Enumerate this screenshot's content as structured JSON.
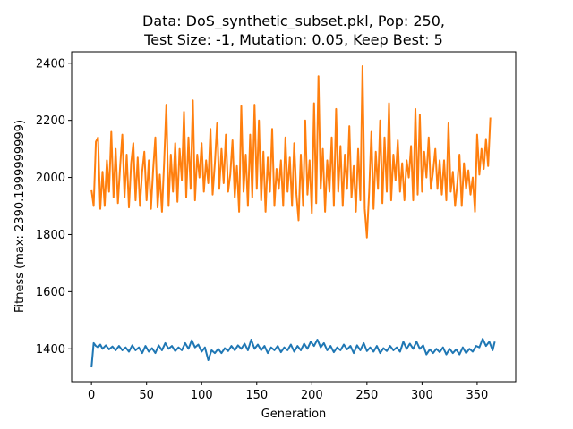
{
  "chart_data": {
    "type": "line",
    "title_line1": "Data: DoS_synthetic_subset.pkl, Pop: 250,",
    "title_line2": "Test Size: -1, Mutation: 0.05, Keep Best: 5",
    "xlabel": "Generation",
    "ylabel": "Fitness (max: 2390.1999999999)",
    "xlim": [
      -18,
      385
    ],
    "ylim": [
      1285,
      2440
    ],
    "xticks": [
      0,
      50,
      100,
      150,
      200,
      250,
      300,
      350
    ],
    "yticks": [
      1400,
      1600,
      1800,
      2000,
      2200,
      2400
    ],
    "grid": false,
    "legend": "none",
    "series": [
      {
        "color": "#1f77b4",
        "points": [
          [
            0,
            1335
          ],
          [
            2,
            1420
          ],
          [
            4,
            1410
          ],
          [
            6,
            1405
          ],
          [
            8,
            1415
          ],
          [
            10,
            1400
          ],
          [
            13,
            1412
          ],
          [
            16,
            1398
          ],
          [
            19,
            1408
          ],
          [
            22,
            1395
          ],
          [
            25,
            1410
          ],
          [
            28,
            1395
          ],
          [
            31,
            1405
          ],
          [
            34,
            1390
          ],
          [
            37,
            1412
          ],
          [
            40,
            1395
          ],
          [
            43,
            1405
          ],
          [
            46,
            1385
          ],
          [
            49,
            1410
          ],
          [
            52,
            1390
          ],
          [
            55,
            1402
          ],
          [
            58,
            1385
          ],
          [
            61,
            1412
          ],
          [
            64,
            1395
          ],
          [
            67,
            1420
          ],
          [
            70,
            1400
          ],
          [
            73,
            1410
          ],
          [
            76,
            1392
          ],
          [
            79,
            1405
          ],
          [
            82,
            1395
          ],
          [
            85,
            1420
          ],
          [
            88,
            1400
          ],
          [
            91,
            1430
          ],
          [
            94,
            1405
          ],
          [
            97,
            1415
          ],
          [
            100,
            1390
          ],
          [
            103,
            1405
          ],
          [
            106,
            1360
          ],
          [
            109,
            1395
          ],
          [
            112,
            1385
          ],
          [
            115,
            1400
          ],
          [
            118,
            1385
          ],
          [
            121,
            1402
          ],
          [
            124,
            1392
          ],
          [
            127,
            1410
          ],
          [
            130,
            1395
          ],
          [
            133,
            1412
          ],
          [
            136,
            1400
          ],
          [
            139,
            1418
          ],
          [
            142,
            1395
          ],
          [
            145,
            1432
          ],
          [
            148,
            1400
          ],
          [
            151,
            1415
          ],
          [
            154,
            1395
          ],
          [
            157,
            1410
          ],
          [
            160,
            1385
          ],
          [
            163,
            1405
          ],
          [
            166,
            1395
          ],
          [
            169,
            1410
          ],
          [
            172,
            1388
          ],
          [
            175,
            1405
          ],
          [
            178,
            1395
          ],
          [
            181,
            1415
          ],
          [
            184,
            1390
          ],
          [
            187,
            1410
          ],
          [
            190,
            1395
          ],
          [
            193,
            1418
          ],
          [
            196,
            1400
          ],
          [
            199,
            1425
          ],
          [
            202,
            1410
          ],
          [
            205,
            1432
          ],
          [
            208,
            1405
          ],
          [
            211,
            1420
          ],
          [
            214,
            1395
          ],
          [
            217,
            1410
          ],
          [
            220,
            1388
          ],
          [
            223,
            1405
          ],
          [
            226,
            1395
          ],
          [
            229,
            1415
          ],
          [
            232,
            1398
          ],
          [
            235,
            1410
          ],
          [
            238,
            1385
          ],
          [
            241,
            1412
          ],
          [
            244,
            1395
          ],
          [
            247,
            1420
          ],
          [
            250,
            1392
          ],
          [
            253,
            1405
          ],
          [
            256,
            1390
          ],
          [
            259,
            1410
          ],
          [
            262,
            1385
          ],
          [
            265,
            1402
          ],
          [
            268,
            1392
          ],
          [
            271,
            1410
          ],
          [
            274,
            1395
          ],
          [
            277,
            1405
          ],
          [
            280,
            1390
          ],
          [
            283,
            1425
          ],
          [
            286,
            1400
          ],
          [
            289,
            1418
          ],
          [
            292,
            1400
          ],
          [
            295,
            1425
          ],
          [
            298,
            1400
          ],
          [
            301,
            1412
          ],
          [
            304,
            1380
          ],
          [
            307,
            1398
          ],
          [
            310,
            1385
          ],
          [
            313,
            1400
          ],
          [
            316,
            1388
          ],
          [
            319,
            1405
          ],
          [
            322,
            1380
          ],
          [
            325,
            1400
          ],
          [
            328,
            1385
          ],
          [
            331,
            1398
          ],
          [
            334,
            1380
          ],
          [
            337,
            1405
          ],
          [
            340,
            1385
          ],
          [
            343,
            1400
          ],
          [
            346,
            1390
          ],
          [
            349,
            1410
          ],
          [
            352,
            1405
          ],
          [
            355,
            1435
          ],
          [
            358,
            1410
          ],
          [
            361,
            1425
          ],
          [
            364,
            1395
          ],
          [
            366,
            1425
          ]
        ]
      },
      {
        "color": "#ff7f0e",
        "points": [
          [
            0,
            1955
          ],
          [
            2,
            1900
          ],
          [
            4,
            2125
          ],
          [
            6,
            2140
          ],
          [
            8,
            1890
          ],
          [
            10,
            2020
          ],
          [
            12,
            1900
          ],
          [
            14,
            2060
          ],
          [
            16,
            1950
          ],
          [
            18,
            2160
          ],
          [
            20,
            1930
          ],
          [
            22,
            2100
          ],
          [
            24,
            1910
          ],
          [
            26,
            2040
          ],
          [
            28,
            2150
          ],
          [
            30,
            1930
          ],
          [
            32,
            2080
          ],
          [
            34,
            1895
          ],
          [
            36,
            2050
          ],
          [
            38,
            2120
          ],
          [
            40,
            1920
          ],
          [
            42,
            2070
          ],
          [
            44,
            1900
          ],
          [
            46,
            2020
          ],
          [
            48,
            2090
          ],
          [
            50,
            1920
          ],
          [
            52,
            2060
          ],
          [
            54,
            1890
          ],
          [
            56,
            2030
          ],
          [
            58,
            2140
          ],
          [
            60,
            1895
          ],
          [
            62,
            2010
          ],
          [
            64,
            1880
          ],
          [
            66,
            2060
          ],
          [
            68,
            2255
          ],
          [
            70,
            1900
          ],
          [
            72,
            2080
          ],
          [
            74,
            1950
          ],
          [
            76,
            2120
          ],
          [
            78,
            1915
          ],
          [
            80,
            2100
          ],
          [
            82,
            1990
          ],
          [
            84,
            2230
          ],
          [
            86,
            1930
          ],
          [
            88,
            2140
          ],
          [
            90,
            1960
          ],
          [
            92,
            2270
          ],
          [
            94,
            1920
          ],
          [
            96,
            2080
          ],
          [
            98,
            2000
          ],
          [
            100,
            2120
          ],
          [
            102,
            1950
          ],
          [
            104,
            2060
          ],
          [
            106,
            1980
          ],
          [
            108,
            2170
          ],
          [
            110,
            1940
          ],
          [
            112,
            2050
          ],
          [
            114,
            2190
          ],
          [
            116,
            1960
          ],
          [
            118,
            2100
          ],
          [
            120,
            1980
          ],
          [
            122,
            2150
          ],
          [
            124,
            1950
          ],
          [
            126,
            2010
          ],
          [
            128,
            2130
          ],
          [
            130,
            1930
          ],
          [
            132,
            2040
          ],
          [
            134,
            1880
          ],
          [
            136,
            2250
          ],
          [
            138,
            1950
          ],
          [
            140,
            2080
          ],
          [
            142,
            1900
          ],
          [
            144,
            2150
          ],
          [
            146,
            1930
          ],
          [
            148,
            2255
          ],
          [
            150,
            1960
          ],
          [
            152,
            2200
          ],
          [
            154,
            1920
          ],
          [
            156,
            2090
          ],
          [
            158,
            1880
          ],
          [
            160,
            2070
          ],
          [
            162,
            1950
          ],
          [
            164,
            2170
          ],
          [
            166,
            1900
          ],
          [
            168,
            2030
          ],
          [
            170,
            1960
          ],
          [
            172,
            2060
          ],
          [
            174,
            1900
          ],
          [
            176,
            2140
          ],
          [
            178,
            1950
          ],
          [
            180,
            2070
          ],
          [
            182,
            1900
          ],
          [
            184,
            2120
          ],
          [
            186,
            1940
          ],
          [
            188,
            1850
          ],
          [
            190,
            2080
          ],
          [
            192,
            1900
          ],
          [
            194,
            2200
          ],
          [
            196,
            1940
          ],
          [
            198,
            2060
          ],
          [
            200,
            1875
          ],
          [
            202,
            2260
          ],
          [
            204,
            1910
          ],
          [
            206,
            2355
          ],
          [
            208,
            1960
          ],
          [
            210,
            2100
          ],
          [
            212,
            1880
          ],
          [
            214,
            2060
          ],
          [
            216,
            1950
          ],
          [
            218,
            2140
          ],
          [
            220,
            1900
          ],
          [
            222,
            2240
          ],
          [
            224,
            1950
          ],
          [
            226,
            2110
          ],
          [
            228,
            1900
          ],
          [
            230,
            2080
          ],
          [
            232,
            1960
          ],
          [
            234,
            2180
          ],
          [
            236,
            1930
          ],
          [
            238,
            2040
          ],
          [
            240,
            1880
          ],
          [
            242,
            2100
          ],
          [
            244,
            1920
          ],
          [
            246,
            2390
          ],
          [
            248,
            1890
          ],
          [
            250,
            1790
          ],
          [
            252,
            1950
          ],
          [
            254,
            2160
          ],
          [
            256,
            1890
          ],
          [
            258,
            2090
          ],
          [
            260,
            1960
          ],
          [
            262,
            2200
          ],
          [
            264,
            1910
          ],
          [
            266,
            2140
          ],
          [
            268,
            1950
          ],
          [
            270,
            2260
          ],
          [
            272,
            1920
          ],
          [
            274,
            2080
          ],
          [
            276,
            1990
          ],
          [
            278,
            2130
          ],
          [
            280,
            1950
          ],
          [
            282,
            2050
          ],
          [
            284,
            1920
          ],
          [
            286,
            2060
          ],
          [
            288,
            2000
          ],
          [
            290,
            2110
          ],
          [
            292,
            1920
          ],
          [
            294,
            2240
          ],
          [
            296,
            1940
          ],
          [
            298,
            2220
          ],
          [
            300,
            1950
          ],
          [
            302,
            2090
          ],
          [
            304,
            2000
          ],
          [
            306,
            2140
          ],
          [
            308,
            1960
          ],
          [
            310,
            2020
          ],
          [
            312,
            2100
          ],
          [
            314,
            1960
          ],
          [
            316,
            2060
          ],
          [
            318,
            1940
          ],
          [
            320,
            2060
          ],
          [
            322,
            1920
          ],
          [
            324,
            2190
          ],
          [
            326,
            1950
          ],
          [
            328,
            2020
          ],
          [
            330,
            1900
          ],
          [
            332,
            1980
          ],
          [
            334,
            2080
          ],
          [
            336,
            1900
          ],
          [
            338,
            2050
          ],
          [
            340,
            1960
          ],
          [
            342,
            2025
          ],
          [
            344,
            1940
          ],
          [
            346,
            2000
          ],
          [
            348,
            1880
          ],
          [
            350,
            2150
          ],
          [
            352,
            2010
          ],
          [
            354,
            2100
          ],
          [
            356,
            2030
          ],
          [
            358,
            2135
          ],
          [
            360,
            2040
          ],
          [
            362,
            2210
          ]
        ]
      }
    ]
  }
}
